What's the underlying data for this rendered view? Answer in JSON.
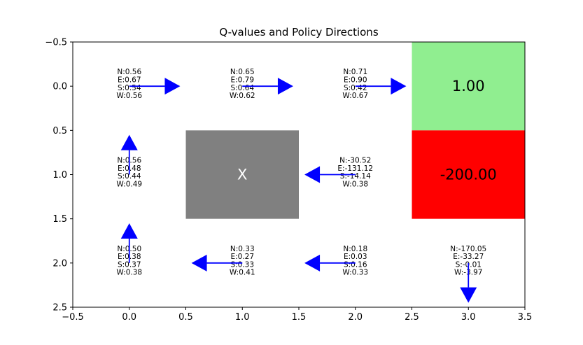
{
  "chart_data": {
    "type": "heatmap",
    "title": "Q-values and Policy Directions",
    "xlabel": "",
    "ylabel": "",
    "xlim": [
      -0.5,
      3.5
    ],
    "ylim": [
      2.5,
      -0.5
    ],
    "y_inverted": true,
    "grid": false,
    "x_ticks": [
      "−0.5",
      "0.0",
      "0.5",
      "1.0",
      "1.5",
      "2.0",
      "2.5",
      "3.0",
      "3.5"
    ],
    "x_tick_values": [
      -0.5,
      0.0,
      0.5,
      1.0,
      1.5,
      2.0,
      2.5,
      3.0,
      3.5
    ],
    "y_ticks": [
      "−0.5",
      "0.0",
      "0.5",
      "1.0",
      "1.5",
      "2.0",
      "2.5"
    ],
    "y_tick_values": [
      -0.5,
      0.0,
      0.5,
      1.0,
      1.5,
      2.0,
      2.5
    ],
    "special_cells": [
      {
        "row": 0,
        "col": 3,
        "label": "1.00",
        "color": "#90ee90",
        "text_color": "#000000"
      },
      {
        "row": 1,
        "col": 3,
        "label": "-200.00",
        "color": "#ff0000",
        "text_color": "#000000"
      },
      {
        "row": 1,
        "col": 1,
        "label": "X",
        "color": "#808080",
        "text_color": "#ffffff"
      }
    ],
    "cells": [
      {
        "row": 0,
        "col": 0,
        "q": [
          "N:0.56",
          "E:0.67",
          "S:0.54",
          "W:0.56"
        ],
        "policy": "E"
      },
      {
        "row": 0,
        "col": 1,
        "q": [
          "N:0.65",
          "E:0.79",
          "S:0.64",
          "W:0.62"
        ],
        "policy": "E"
      },
      {
        "row": 0,
        "col": 2,
        "q": [
          "N:0.71",
          "E:0.90",
          "S:0.42",
          "W:0.67"
        ],
        "policy": "E"
      },
      {
        "row": 1,
        "col": 0,
        "q": [
          "N:0.56",
          "E:0.48",
          "S:0.44",
          "W:0.49"
        ],
        "policy": "N"
      },
      {
        "row": 1,
        "col": 2,
        "q": [
          "N:-30.52",
          "E:-131.12",
          "S:-14.14",
          "W:0.38"
        ],
        "policy": "W"
      },
      {
        "row": 2,
        "col": 0,
        "q": [
          "N:0.50",
          "E:0.38",
          "S:0.37",
          "W:0.38"
        ],
        "policy": "N"
      },
      {
        "row": 2,
        "col": 1,
        "q": [
          "N:0.33",
          "E:0.27",
          "S:0.33",
          "W:0.41"
        ],
        "policy": "W"
      },
      {
        "row": 2,
        "col": 2,
        "q": [
          "N:0.18",
          "E:0.03",
          "S:0.16",
          "W:0.33"
        ],
        "policy": "W"
      },
      {
        "row": 2,
        "col": 3,
        "q": [
          "N:-170.05",
          "E:-33.27",
          "S:-0.01",
          "W:-3.97"
        ],
        "policy": "S"
      }
    ],
    "arrow_color": "#0000ff"
  }
}
